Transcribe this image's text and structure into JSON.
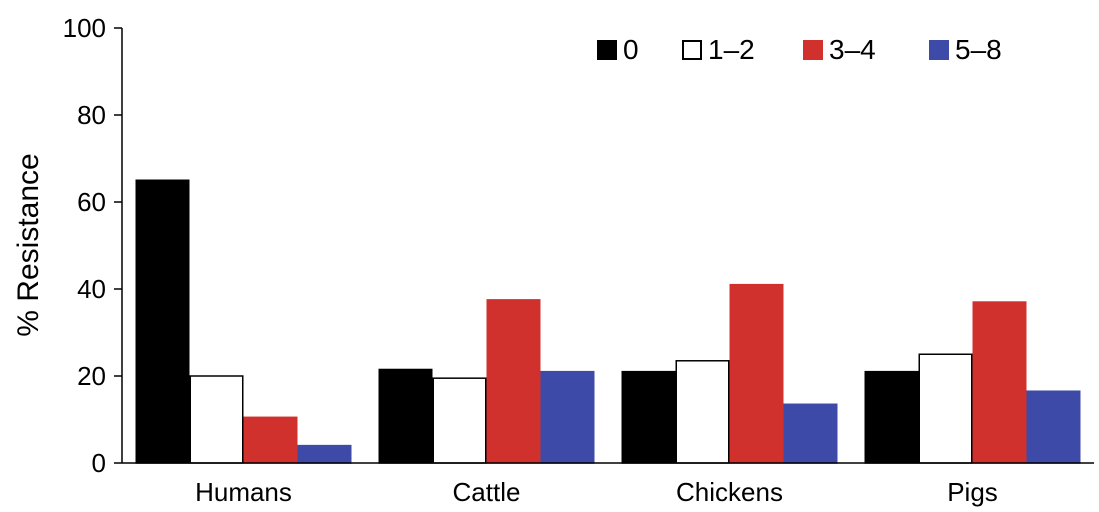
{
  "chart_data": {
    "type": "bar",
    "title": "",
    "xlabel": "",
    "ylabel": "% Resistance",
    "ylim": [
      0,
      100
    ],
    "yticks": [
      "0",
      "20",
      "40",
      "60",
      "80",
      "100"
    ],
    "grid": false,
    "legend_position": "top-right",
    "categories": [
      "Humans",
      "Cattle",
      "Chickens",
      "Pigs"
    ],
    "series": [
      {
        "name": "0",
        "color": "#000000",
        "stroke": "#000000",
        "values": [
          65,
          21.5,
          21,
          21
        ]
      },
      {
        "name": "1–2",
        "color": "#ffffff",
        "stroke": "#000000",
        "values": [
          20,
          19.5,
          23.5,
          25
        ]
      },
      {
        "name": "3–4",
        "color": "#d0312d",
        "stroke": "#d0312d",
        "values": [
          10.5,
          37.5,
          41,
          37
        ]
      },
      {
        "name": "5–8",
        "color": "#3d4aa8",
        "stroke": "#3d4aa8",
        "values": [
          4,
          21,
          13.5,
          16.5
        ]
      }
    ]
  }
}
